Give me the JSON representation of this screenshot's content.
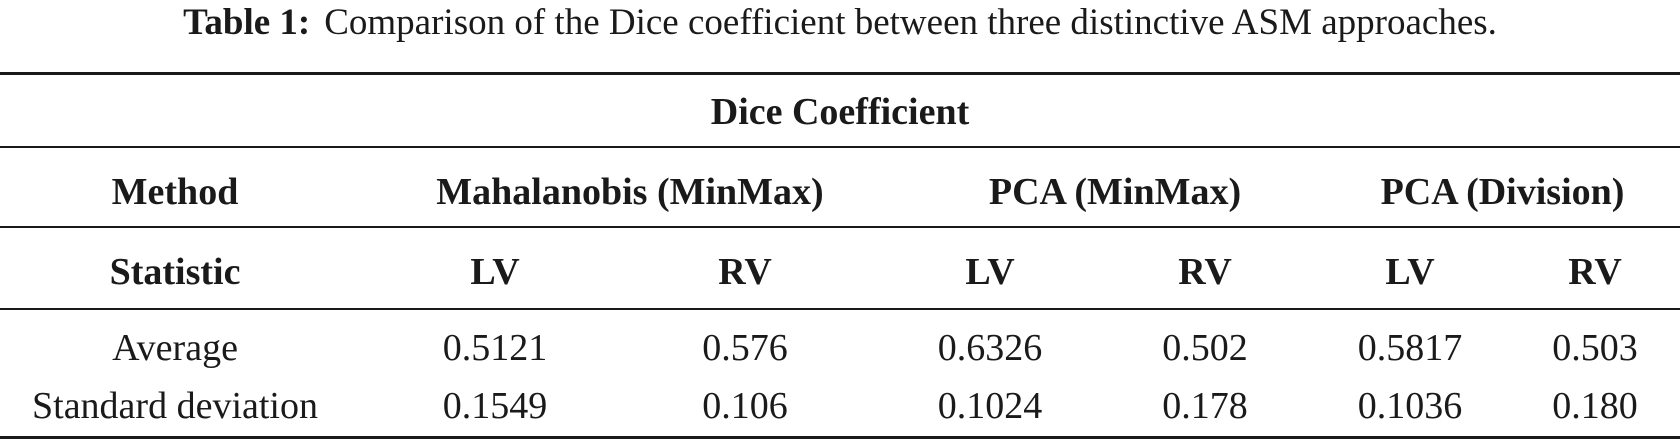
{
  "caption": {
    "label": "Table 1:",
    "text": "Comparison of the Dice coefficient between three distinctive ASM approaches."
  },
  "table": {
    "group_header": "Dice Coefficient",
    "method_label": "Method",
    "methods": [
      "Mahalanobis (MinMax)",
      "PCA (MinMax)",
      "PCA (Division)"
    ],
    "statistic_label": "Statistic",
    "subcolumns": [
      "LV",
      "RV",
      "LV",
      "RV",
      "LV",
      "RV"
    ],
    "rows": [
      {
        "label": "Average",
        "values": [
          "0.5121",
          "0.576",
          "0.6326",
          "0.502",
          "0.5817",
          "0.503"
        ]
      },
      {
        "label": "Standard deviation",
        "values": [
          "0.1549",
          "0.106",
          "0.1024",
          "0.178",
          "0.1036",
          "0.180"
        ]
      }
    ]
  }
}
